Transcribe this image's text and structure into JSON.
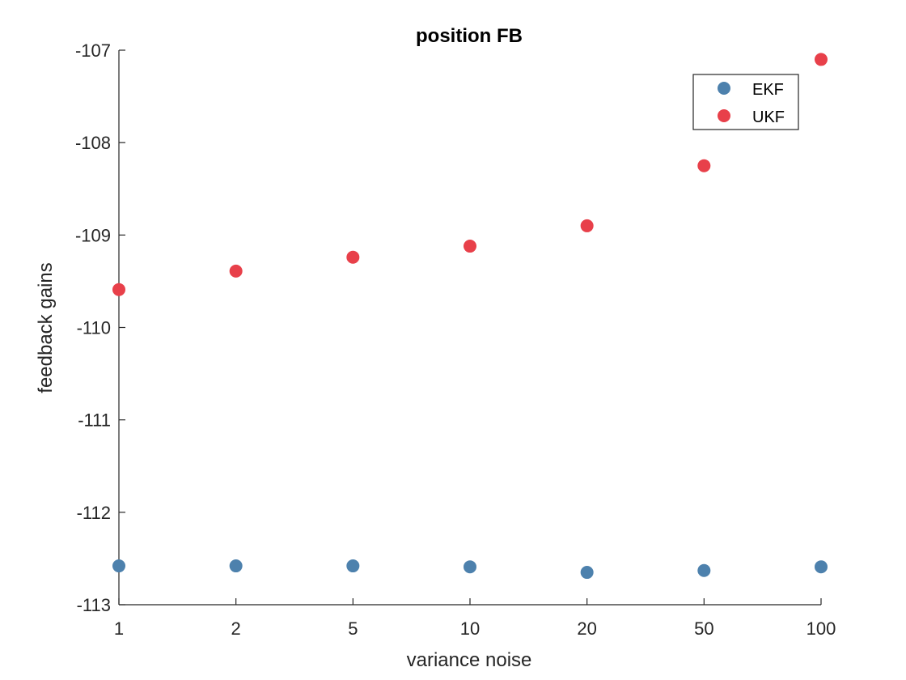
{
  "chart_data": {
    "type": "scatter",
    "title": "position FB",
    "xlabel": "variance noise",
    "ylabel": "feedback gains",
    "categories": [
      "1",
      "2",
      "5",
      "10",
      "20",
      "50",
      "100"
    ],
    "ylim": [
      -113,
      -107
    ],
    "yticks": [
      "-113",
      "-112",
      "-111",
      "-110",
      "-109",
      "-108",
      "-107"
    ],
    "grid": false,
    "legend_position": "top-right",
    "series": [
      {
        "name": "EKF",
        "color": "#4d81ad",
        "values": [
          -112.58,
          -112.58,
          -112.58,
          -112.59,
          -112.65,
          -112.63,
          -112.59
        ]
      },
      {
        "name": "UKF",
        "color": "#e8404a",
        "values": [
          -109.59,
          -109.39,
          -109.24,
          -109.12,
          -108.9,
          -108.25,
          -107.1
        ]
      }
    ]
  }
}
